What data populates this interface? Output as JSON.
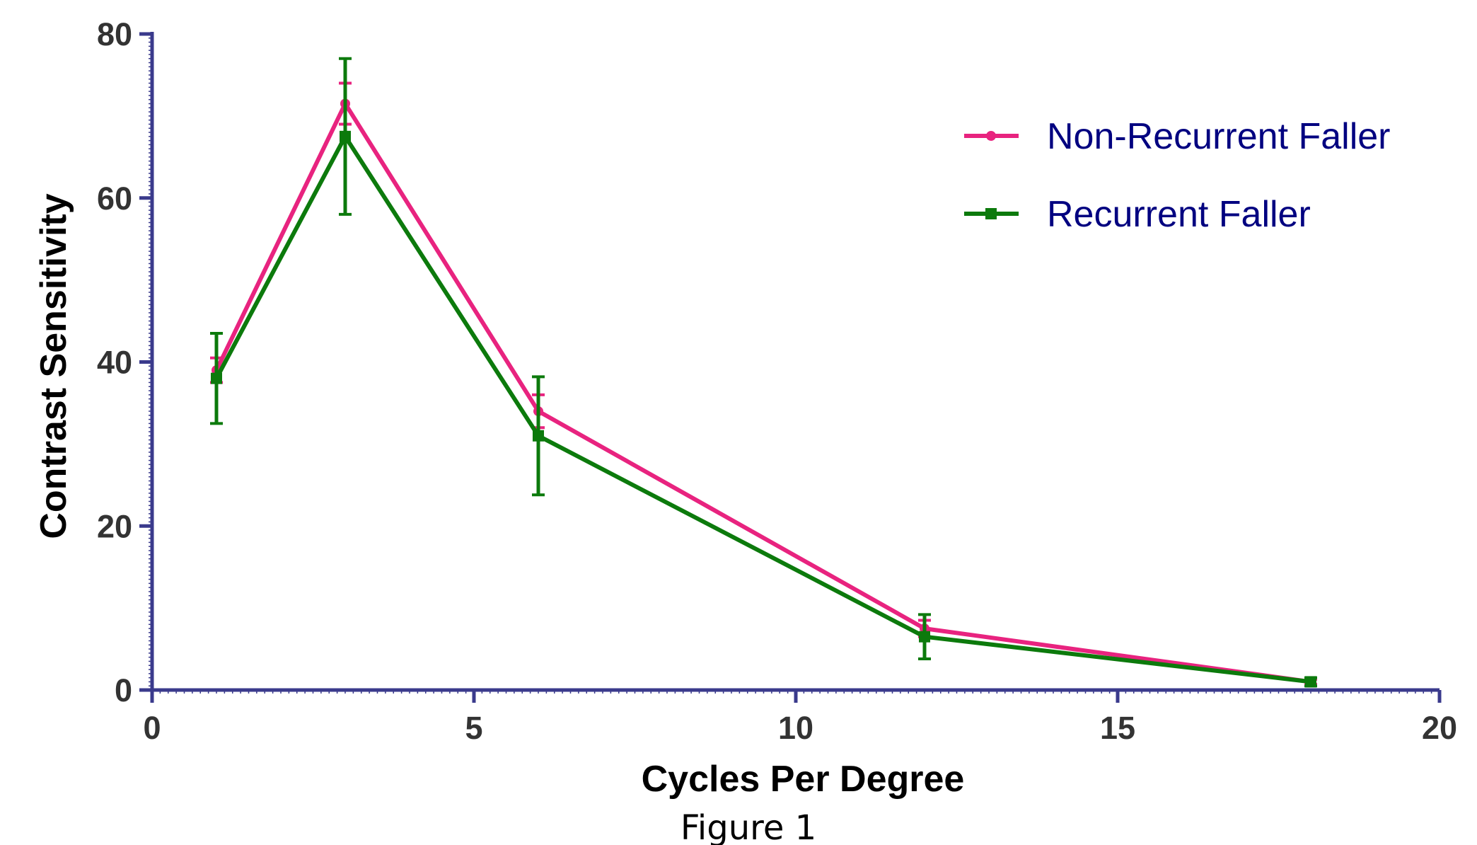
{
  "chart_data": {
    "type": "line",
    "title": "",
    "xlabel": "Cycles Per Degree",
    "ylabel": "Contrast Sensitivity",
    "caption": "Figure 1",
    "xlim": [
      0,
      20
    ],
    "ylim": [
      0,
      80
    ],
    "xticks": [
      "0",
      "5",
      "10",
      "15",
      "20"
    ],
    "yticks": [
      "0",
      "20",
      "40",
      "60",
      "80"
    ],
    "xtick_values": [
      0,
      5,
      10,
      15,
      20
    ],
    "ytick_values": [
      0,
      20,
      40,
      60,
      80
    ],
    "grid": false,
    "legend_position": "top-right",
    "axis_color": "#3a3a8c",
    "series": [
      {
        "name": "Non-Recurrent Faller",
        "color": "#e8237f",
        "marker": "circle",
        "x": [
          1,
          3,
          6,
          12,
          18
        ],
        "y": [
          39,
          71.5,
          34,
          7.5,
          1
        ],
        "err": [
          1.5,
          2.5,
          2,
          1,
          0.3
        ]
      },
      {
        "name": "Recurrent Faller",
        "color": "#0c7a0c",
        "marker": "square",
        "x": [
          1,
          3,
          6,
          12,
          18
        ],
        "y": [
          38,
          67.5,
          31,
          6.5,
          1
        ],
        "err": [
          5.5,
          9.5,
          7.2,
          2.7,
          0.5
        ]
      }
    ]
  }
}
